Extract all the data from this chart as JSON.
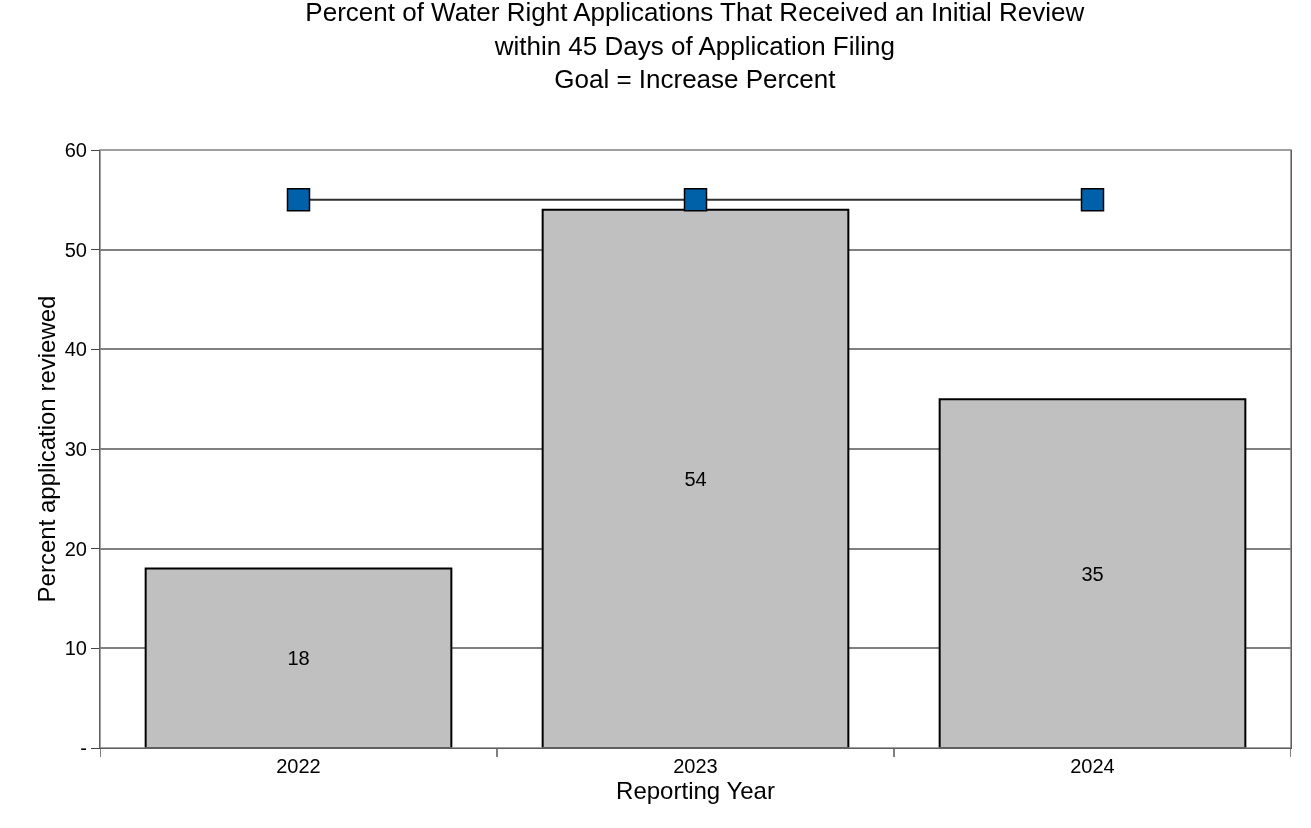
{
  "chart_data": {
    "type": "bar",
    "title": "Percent of Water Right Applications That Received an Initial Review\nwithin 45 Days of Application Filing\nGoal = Increase Percent",
    "xlabel": "Reporting Year",
    "ylabel": "Percent application reviewed",
    "categories": [
      "2022",
      "2023",
      "2024"
    ],
    "series": [
      {
        "color": "#c0c0c0",
        "values": [
          18,
          54,
          35
        ],
        "data_labels": true
      },
      {
        "type": "line",
        "color": "#0060a8",
        "values": [
          55,
          55,
          55
        ],
        "marker": "square"
      }
    ],
    "ylim": [
      0,
      60
    ],
    "yticks": [
      {
        "value": 0,
        "label": "-"
      },
      10,
      20,
      30,
      40,
      50,
      60
    ],
    "grid": "y"
  }
}
